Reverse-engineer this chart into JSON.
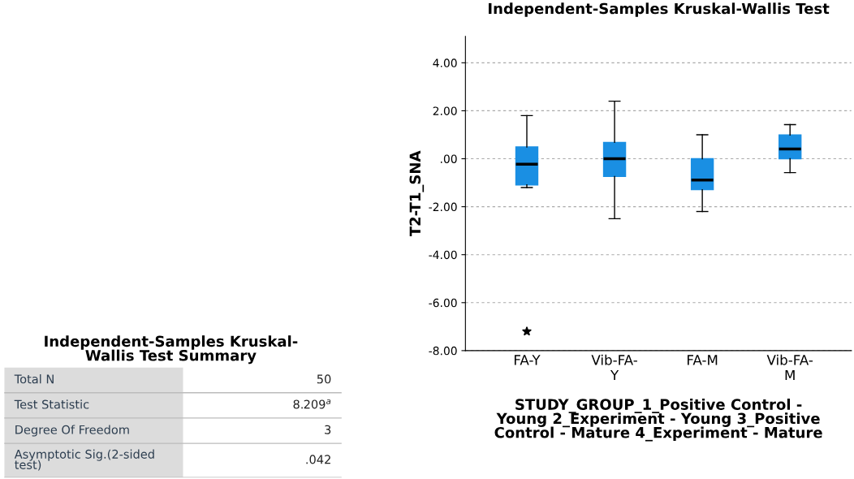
{
  "chart_data": [
    {
      "type": "box",
      "title": "Independent-Samples Kruskal-Wallis Test",
      "xlabel": "STUDY_GROUP_1_Positive Control -\nYoung 2_Experiment - Young 3_Positive\nControl - Mature 4_Experiment - Mature",
      "ylabel": "T2-T1_SNA",
      "categories": [
        "FA-Y",
        "Vib-FA-\nY",
        "FA-M",
        "Vib-FA-\nM"
      ],
      "color": "#1a8fe3",
      "marker": "star",
      "grid": "y",
      "ylim": [
        -8,
        5.1
      ],
      "yticks": [
        {
          "value": -8,
          "label": "-8.00"
        },
        {
          "value": -6,
          "label": "-6.00"
        },
        {
          "value": -4,
          "label": "-4.00"
        },
        {
          "value": -2,
          "label": "-2.00"
        },
        {
          "value": 0,
          "label": ".00"
        },
        {
          "value": 2,
          "label": "2.00"
        },
        {
          "value": 4,
          "label": "4.00"
        }
      ],
      "boxes": [
        {
          "low": -1.2,
          "q1": -1.09,
          "median": -0.23,
          "q3": 0.49,
          "high": 1.8,
          "outliers": [
            -7.2
          ]
        },
        {
          "low": -2.5,
          "q1": -0.74,
          "median": 0,
          "q3": 0.68,
          "high": 2.4
        },
        {
          "low": -2.2,
          "q1": -1.29,
          "median": -0.89,
          "q3": 0,
          "high": 1.0
        },
        {
          "low": -0.58,
          "q1": 0,
          "median": 0.41,
          "q3": 0.99,
          "high": 1.42
        }
      ]
    },
    {
      "type": "other",
      "title": "Independent-Samples Kruskal-\nWallis Test Summary",
      "annotations": [
        "Total N",
        "50",
        "Test Statistic",
        "8.209$^{a}$",
        "Degree Of Freedom",
        "3",
        "Asymptotic Sig.(2-sided\ntest)",
        ".042"
      ]
    }
  ]
}
